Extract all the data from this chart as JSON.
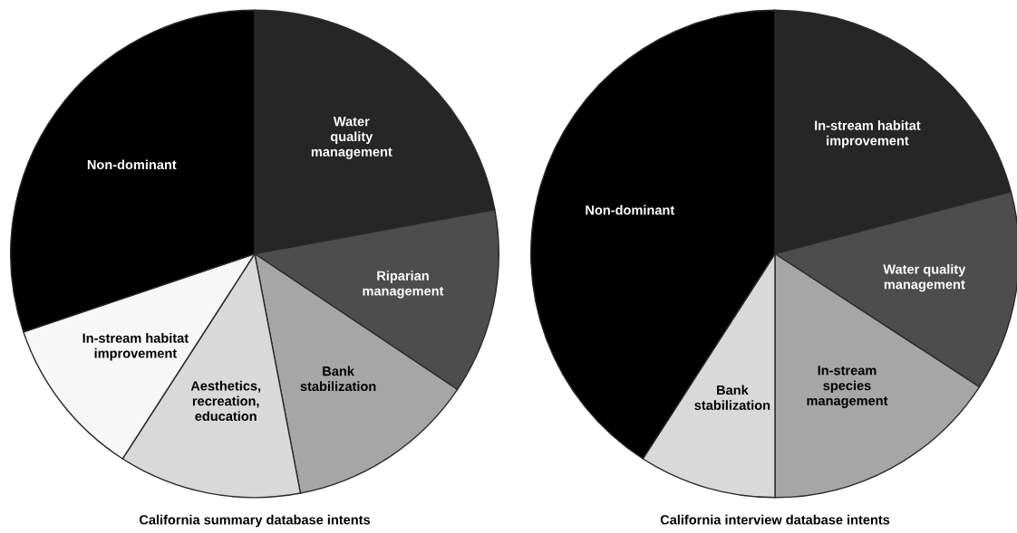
{
  "chart_data": [
    {
      "type": "pie",
      "title": "California summary database intents",
      "categories": [
        "Water\nquality\nmanagement",
        "Riparian\nmanagement",
        "Bank\nstabilization",
        "Aesthetics,\nrecreation,\neducation",
        "In-stream habitat\nimprovement",
        "Non-dominant"
      ],
      "values": [
        22.1,
        12.3,
        12.6,
        12.1,
        10.7,
        30.2
      ],
      "colors": [
        "#262626",
        "#4d4d4d",
        "#a6a6a6",
        "#d9d9d9",
        "#f7f7f7",
        "#000000"
      ]
    },
    {
      "type": "pie",
      "title": "California interview database intents",
      "categories": [
        "In-stream habitat\nimprovement",
        "Water quality\nmanagement",
        "In-stream\nspecies\nmanagement",
        "Bank\nstabilization",
        "Non-dominant"
      ],
      "values": [
        20.9,
        13.3,
        15.8,
        9.1,
        40.9
      ],
      "colors": [
        "#262626",
        "#4d4d4d",
        "#a6a6a6",
        "#d9d9d9",
        "#000000"
      ]
    }
  ]
}
